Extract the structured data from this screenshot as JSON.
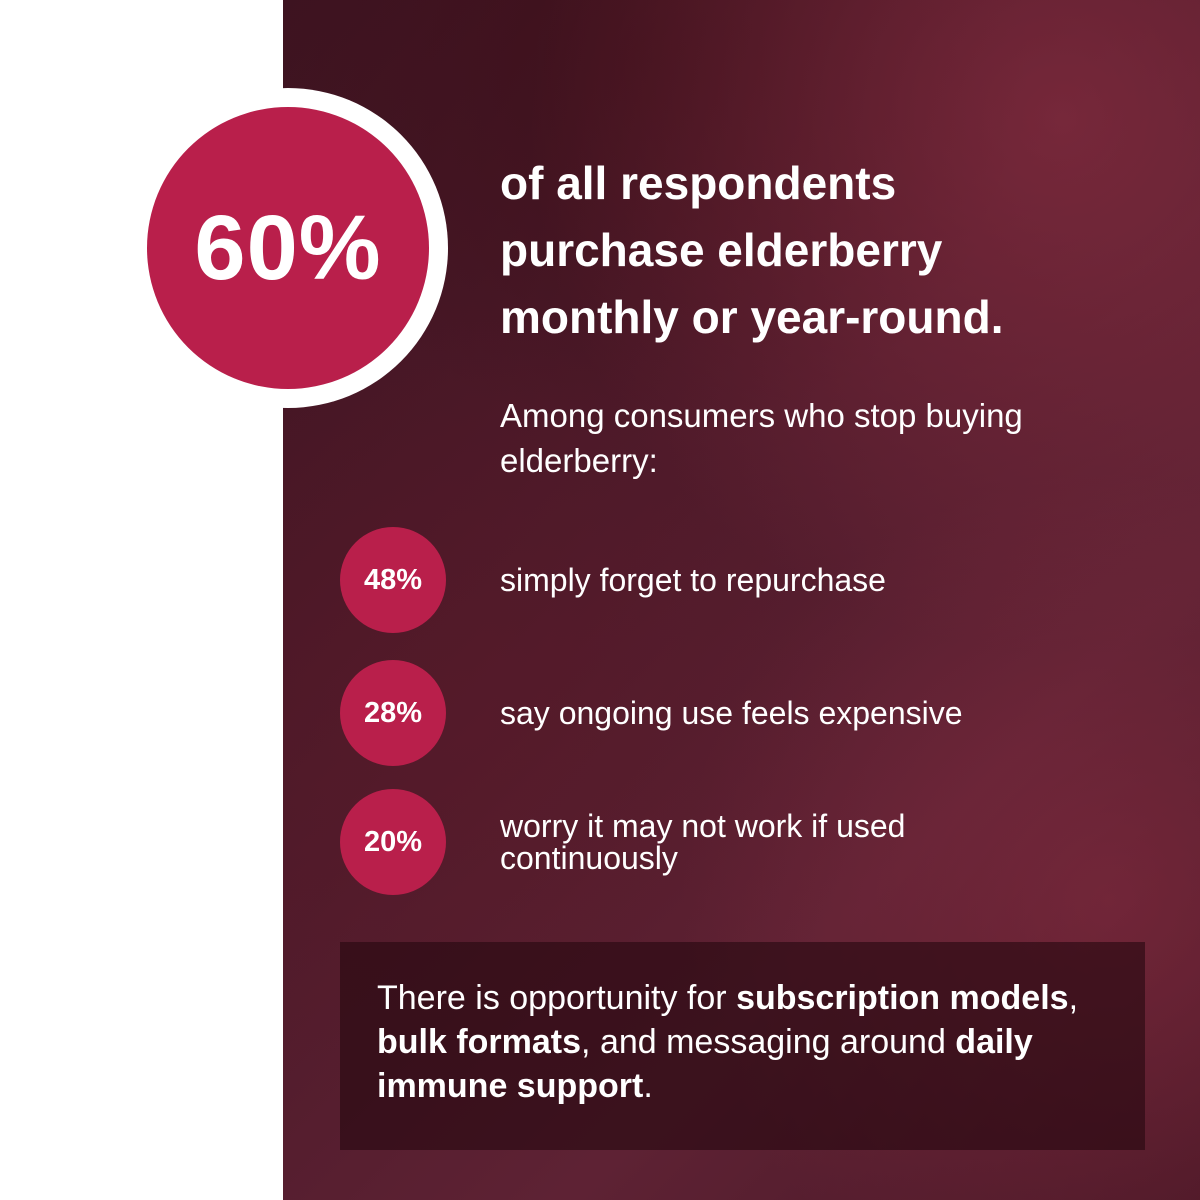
{
  "colors": {
    "accent": "#b91f4b",
    "background": "#4e1a2a",
    "panel": "#ffffff"
  },
  "hero": {
    "stat": "60%",
    "headline_lines": [
      "of all respondents",
      "purchase elderberry",
      "monthly or year-round."
    ]
  },
  "subheading": "Among consumers who stop buying elderberry:",
  "items": [
    {
      "stat": "48%",
      "text": "simply forget to repurchase"
    },
    {
      "stat": "28%",
      "text": "say ongoing use feels expensive"
    },
    {
      "stat": "20%",
      "text": "worry it may not work if used continuously"
    }
  ],
  "callout": {
    "p1": "There is opportunity for ",
    "b1": "subscription models",
    "p2": ", ",
    "b2": "bulk formats",
    "p3": ", and messaging around ",
    "b3": "daily immune support",
    "p4": "."
  }
}
